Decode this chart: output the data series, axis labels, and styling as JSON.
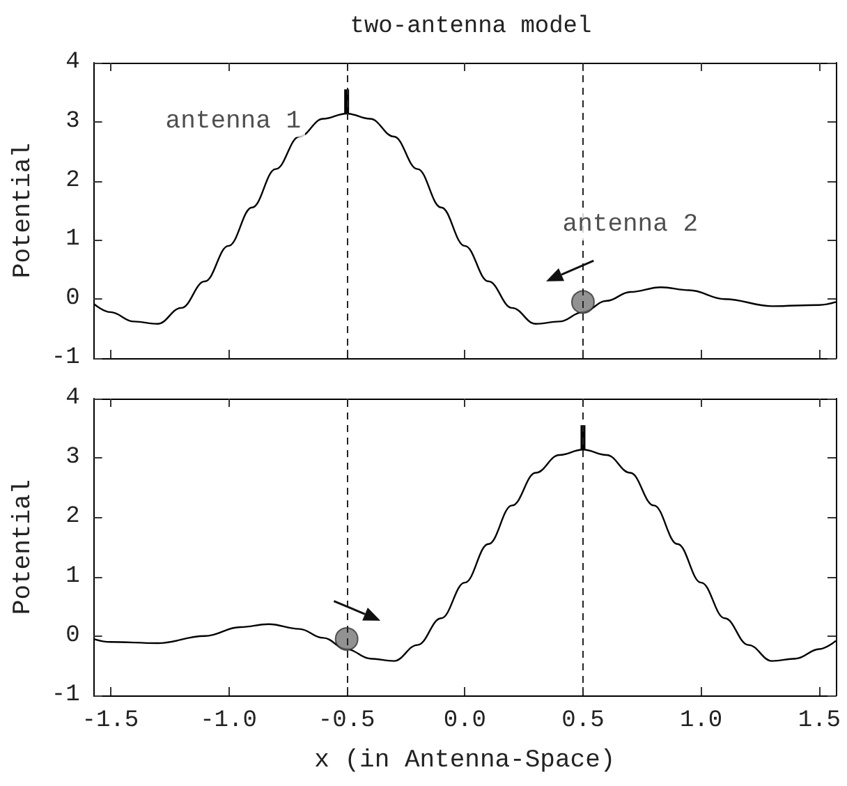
{
  "chart_data": [
    {
      "type": "line",
      "title": "two-antenna model",
      "ylabel": "Potential",
      "xlim": [
        -1.57,
        1.57
      ],
      "xticks": [
        -1.5,
        -1.0,
        -0.5,
        0.0,
        0.5,
        1.0,
        1.5
      ],
      "ylim": [
        -1,
        4
      ],
      "yticks": [
        -1,
        0,
        1,
        2,
        3,
        4
      ],
      "tick_labels": "y",
      "grid": false,
      "series": [
        {
          "type": "line",
          "color": "#000000",
          "marker": "none",
          "x": [
            -1.57,
            -1.5,
            -1.4,
            -1.3,
            -1.2,
            -1.1,
            -1.0,
            -0.9,
            -0.8,
            -0.7,
            -0.6,
            -0.5,
            -0.4,
            -0.3,
            -0.2,
            -0.1,
            0,
            0.1,
            0.2,
            0.3,
            0.4,
            0.5,
            0.6,
            0.7,
            0.83,
            0.95,
            1.1,
            1.3,
            1.5,
            1.57
          ],
          "values": [
            -0.08,
            -0.22,
            -0.38,
            -0.42,
            -0.15,
            0.3,
            0.9,
            1.55,
            2.2,
            2.75,
            3.05,
            3.14,
            3.05,
            2.75,
            2.2,
            1.55,
            0.9,
            0.3,
            -0.15,
            -0.42,
            -0.38,
            -0.22,
            -0.03,
            0.12,
            0.2,
            0.15,
            0.0,
            -0.12,
            -0.1,
            -0.05
          ]
        },
        {
          "type": "line",
          "color": "#000000",
          "marker": "none",
          "x": [
            -0.5,
            -0.5
          ],
          "values": [
            3.14,
            3.55
          ]
        },
        {
          "type": "scatter",
          "color": "#777777",
          "marker": "circle",
          "x": [
            0.5
          ],
          "values": [
            -0.05
          ]
        }
      ],
      "ref_lines": [
        {
          "axis": "x",
          "value": -0.5,
          "line_style": "dashed"
        },
        {
          "axis": "x",
          "value": 0.5,
          "line_style": "dashed"
        }
      ],
      "annotations": [
        "antenna 1",
        "antenna 2"
      ]
    },
    {
      "type": "line",
      "xlabel": "x (in Antenna-Space)",
      "ylabel": "Potential",
      "xlim": [
        -1.57,
        1.57
      ],
      "xticks": [
        -1.5,
        {
          "value": -1,
          "label": "-1.0"
        },
        -0.5,
        {
          "value": 0,
          "label": "0.0"
        },
        0.5,
        {
          "value": 1,
          "label": "1.0"
        },
        1.5
      ],
      "ylim": [
        -1,
        4
      ],
      "yticks": [
        -1,
        0,
        1,
        2,
        3,
        4
      ],
      "grid": false,
      "series": [
        {
          "type": "line",
          "color": "#000000",
          "marker": "none",
          "x": [
            -1.57,
            -1.5,
            -1.3,
            -1.1,
            -0.95,
            -0.83,
            -0.7,
            -0.6,
            -0.5,
            -0.4,
            -0.3,
            -0.2,
            -0.1,
            0,
            0.1,
            0.2,
            0.3,
            0.4,
            0.5,
            0.6,
            0.7,
            0.8,
            0.9,
            1.0,
            1.1,
            1.2,
            1.3,
            1.4,
            1.5,
            1.57
          ],
          "values": [
            -0.05,
            -0.1,
            -0.12,
            0.0,
            0.15,
            0.2,
            0.12,
            -0.03,
            -0.22,
            -0.38,
            -0.42,
            -0.15,
            0.3,
            0.9,
            1.55,
            2.2,
            2.75,
            3.05,
            3.14,
            3.05,
            2.75,
            2.2,
            1.55,
            0.9,
            0.3,
            -0.15,
            -0.42,
            -0.38,
            -0.22,
            -0.08
          ]
        },
        {
          "type": "line",
          "color": "#000000",
          "marker": "none",
          "x": [
            0.5,
            0.5
          ],
          "values": [
            3.14,
            3.55
          ]
        },
        {
          "type": "scatter",
          "color": "#777777",
          "marker": "circle",
          "x": [
            -0.5
          ],
          "values": [
            -0.05
          ]
        }
      ],
      "ref_lines": [
        {
          "axis": "x",
          "value": -0.5,
          "line_style": "dashed"
        },
        {
          "axis": "x",
          "value": 0.5,
          "line_style": "dashed"
        }
      ]
    }
  ]
}
